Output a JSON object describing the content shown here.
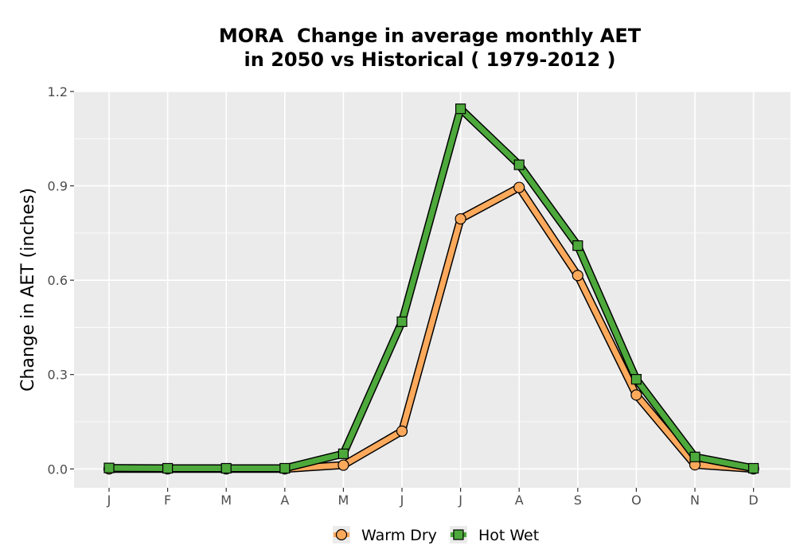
{
  "chart_data": {
    "type": "line",
    "title": [
      "MORA  Change in average monthly AET",
      "in 2050 vs Historical ( 1979-2012 )"
    ],
    "xlabel": "",
    "ylabel": "Change in AET (inches)",
    "categories": [
      "J",
      "F",
      "M",
      "A",
      "M",
      "J",
      "J",
      "A",
      "S",
      "O",
      "N",
      "D"
    ],
    "ylim": [
      -0.06,
      1.2
    ],
    "yticks": [
      0.0,
      0.3,
      0.6,
      0.9,
      1.2
    ],
    "ytick_labels": [
      "0.0",
      "0.3",
      "0.6",
      "0.9",
      "1.2"
    ],
    "grid": true,
    "legend_position": "bottom",
    "series": [
      {
        "name": "Warm Dry",
        "marker": "circle",
        "color": "#FDA95C",
        "values": [
          0.0,
          0.0,
          0.0,
          0.0,
          0.012,
          0.12,
          0.795,
          0.895,
          0.615,
          0.235,
          0.013,
          0.0
        ]
      },
      {
        "name": "Hot Wet",
        "marker": "square",
        "color": "#4DA93B",
        "values": [
          0.003,
          0.002,
          0.002,
          0.002,
          0.048,
          0.468,
          1.145,
          0.967,
          0.71,
          0.285,
          0.038,
          0.002
        ]
      }
    ]
  }
}
